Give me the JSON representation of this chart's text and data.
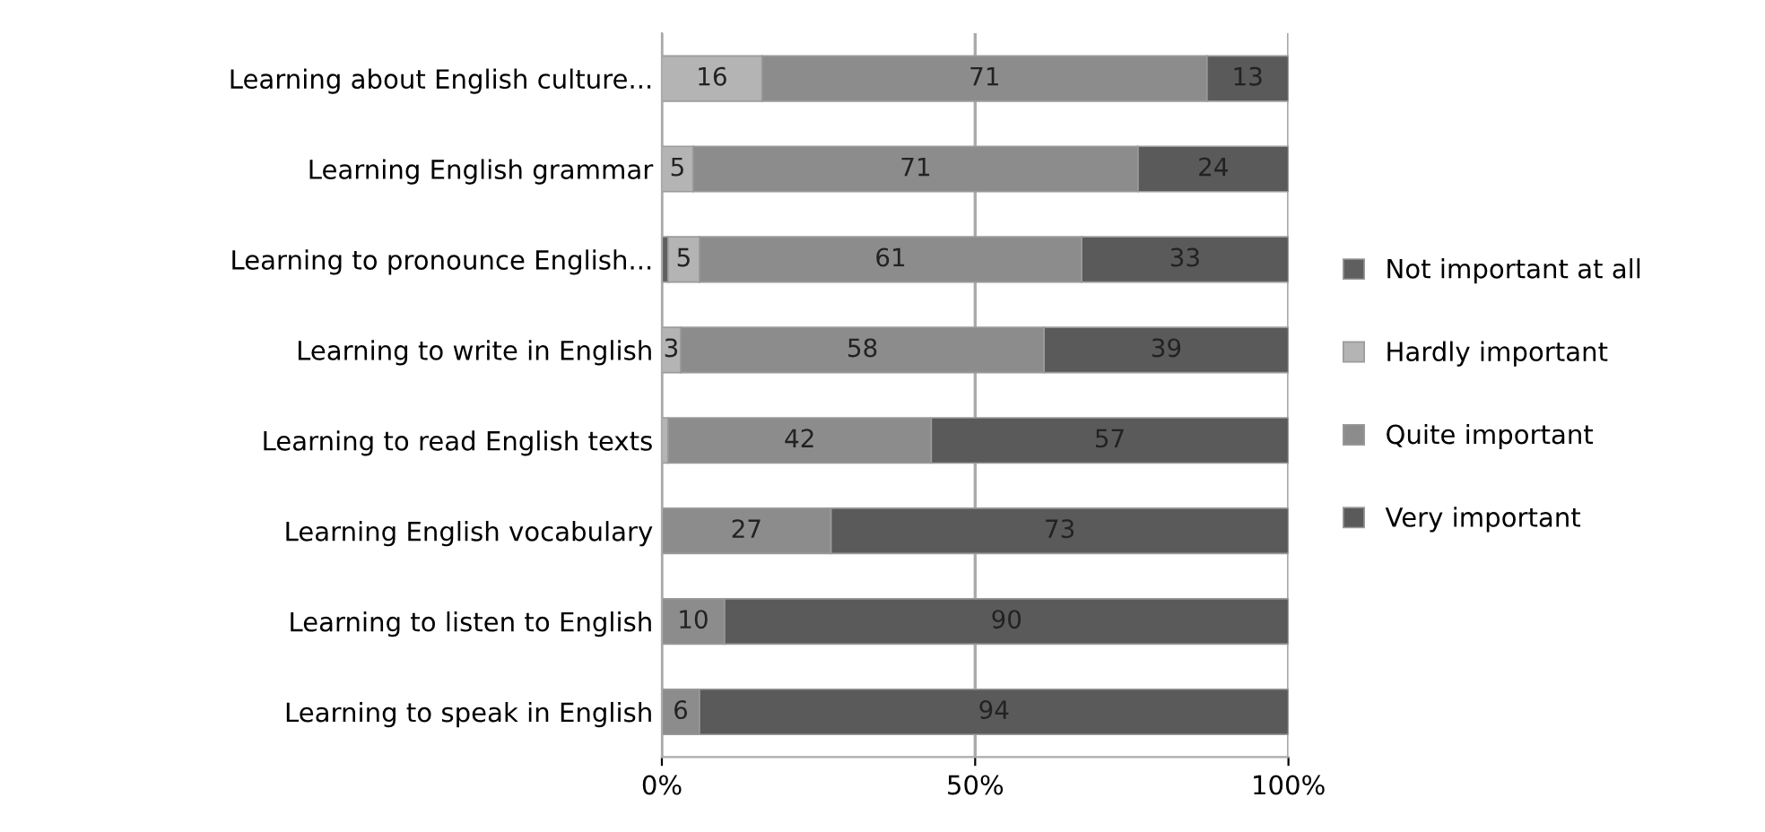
{
  "chart_data": {
    "type": "bar",
    "orientation": "horizontal",
    "stacked": true,
    "categories": [
      "Learning about English culture...",
      "Learning English grammar",
      "Learning to pronounce English...",
      "Learning to write in English",
      "Learning to read English texts",
      "Learning English vocabulary",
      "Learning to listen to English",
      "Learning to speak in English"
    ],
    "series": [
      {
        "name": "Not important at all",
        "color": "#5f5f5f",
        "values": [
          0,
          0,
          1,
          0,
          0,
          0,
          0,
          0
        ],
        "value_labels": [
          null,
          null,
          null,
          null,
          null,
          null,
          null,
          null
        ]
      },
      {
        "name": "Hardly important",
        "color": "#b4b4b4",
        "values": [
          16,
          5,
          5,
          3,
          1,
          0,
          0,
          0
        ],
        "value_labels": [
          "16",
          "5",
          "5",
          "3",
          null,
          null,
          null,
          null
        ]
      },
      {
        "name": "Quite important",
        "color": "#8c8c8c",
        "values": [
          71,
          71,
          61,
          58,
          42,
          27,
          10,
          6
        ],
        "value_labels": [
          "71",
          "71",
          "61",
          "58",
          "42",
          "27",
          "10",
          "6"
        ]
      },
      {
        "name": "Very important",
        "color": "#5a5a5a",
        "values": [
          13,
          24,
          33,
          39,
          57,
          73,
          90,
          94
        ],
        "value_labels": [
          "13",
          "24",
          "33",
          "39",
          "57",
          "73",
          "90",
          "94"
        ]
      }
    ],
    "xlim": [
      0,
      100
    ],
    "xticks": [
      {
        "value": 0,
        "label": "0%"
      },
      {
        "value": 50,
        "label": "50%"
      },
      {
        "value": 100,
        "label": "100%"
      }
    ],
    "grid": "x",
    "legend": "right"
  }
}
